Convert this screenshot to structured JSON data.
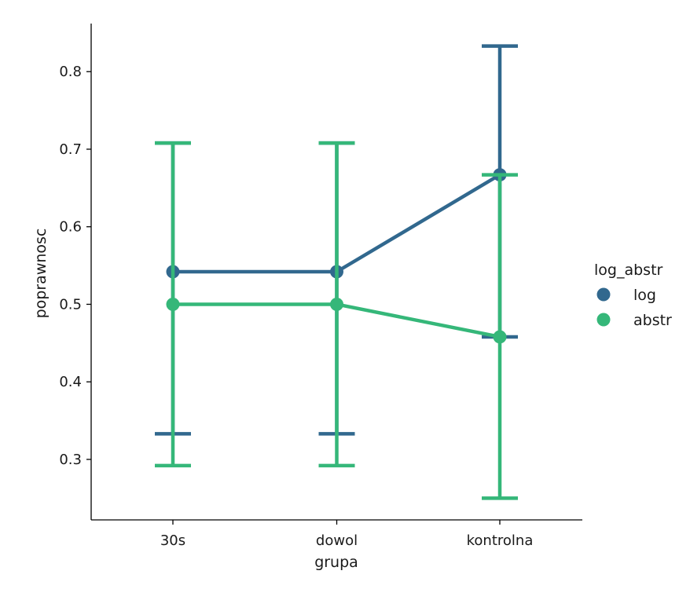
{
  "chart_data": {
    "type": "line",
    "title": "",
    "xlabel": "grupa",
    "ylabel": "poprawnosc",
    "categories": [
      "30s",
      "dowol",
      "kontrolna"
    ],
    "ylim": [
      0.222,
      0.862
    ],
    "yticks": [
      0.3,
      0.4,
      0.5,
      0.6,
      0.7,
      0.8
    ],
    "ytick_labels": [
      "0.3",
      "0.4",
      "0.5",
      "0.6",
      "0.7",
      "0.8"
    ],
    "grid": false,
    "legend": {
      "title": "log_abstr",
      "placement": "right"
    },
    "series": [
      {
        "name": "log",
        "color": "#31688e",
        "values": [
          0.542,
          0.542,
          0.667
        ],
        "ci_low": [
          0.333,
          0.333,
          0.458
        ],
        "ci_high": [
          0.708,
          0.708,
          0.833
        ]
      },
      {
        "name": "abstr",
        "color": "#35b779",
        "values": [
          0.5,
          0.5,
          0.458
        ],
        "ci_low": [
          0.292,
          0.292,
          0.25
        ],
        "ci_high": [
          0.708,
          0.708,
          0.667
        ]
      }
    ]
  }
}
